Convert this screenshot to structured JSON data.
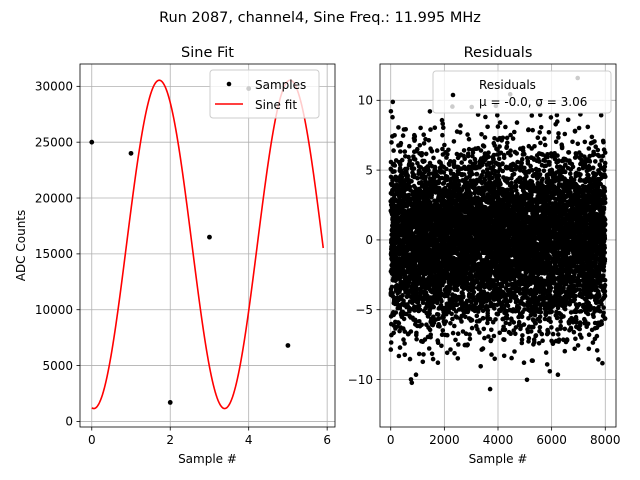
{
  "suptitle": "Run 2087, channel4, Sine Freq.: 11.995 MHz",
  "chart_data": [
    {
      "type": "scatter+line",
      "title": "Sine Fit",
      "xlabel": "Sample #",
      "ylabel": "ADC Counts",
      "xlim": [
        -0.3,
        6.2
      ],
      "ylim": [
        -500,
        32000
      ],
      "xticks": [
        0,
        2,
        4,
        6
      ],
      "xtick_labels": [
        "0",
        "2",
        "4",
        "6"
      ],
      "yticks": [
        0,
        5000,
        10000,
        15000,
        20000,
        25000,
        30000
      ],
      "ytick_labels": [
        "0",
        "5000",
        "10000",
        "15000",
        "20000",
        "25000",
        "30000"
      ],
      "grid": true,
      "legend_position": "top-right",
      "samples": {
        "name": "Samples",
        "x": [
          0,
          1,
          2,
          3,
          4,
          5
        ],
        "y": [
          25000,
          24000,
          1700,
          16500,
          29800,
          6800
        ]
      },
      "fit": {
        "name": "Sine fit",
        "color": "#ff0000",
        "offset": 15850,
        "amplitude": 14700,
        "period_samples": 3.3346,
        "phase_deg": 264.3,
        "x_range": [
          0,
          5.9
        ]
      }
    },
    {
      "type": "scatter",
      "title": "Residuals",
      "xlabel": "Sample #",
      "ylabel": "",
      "xlim": [
        -400,
        8400
      ],
      "ylim": [
        -13.4,
        12.6
      ],
      "xticks": [
        0,
        2000,
        4000,
        6000,
        8000
      ],
      "xtick_labels": [
        "0",
        "2000",
        "4000",
        "6000",
        "8000"
      ],
      "yticks": [
        -10,
        -5,
        0,
        5,
        10
      ],
      "ytick_labels": [
        "−10",
        "−5",
        "0",
        "5",
        "10"
      ],
      "grid": true,
      "legend_position": "top-right",
      "legend_label": "Residuals",
      "legend_stats": "μ = -0.0, σ = 3.06",
      "n_points": 8000,
      "mean": 0.0,
      "sigma": 3.06,
      "x_range": [
        0,
        8000
      ]
    }
  ],
  "colors": {
    "fit_line": "#ff0000",
    "marker": "#000000",
    "grid": "#b0b0b0"
  }
}
